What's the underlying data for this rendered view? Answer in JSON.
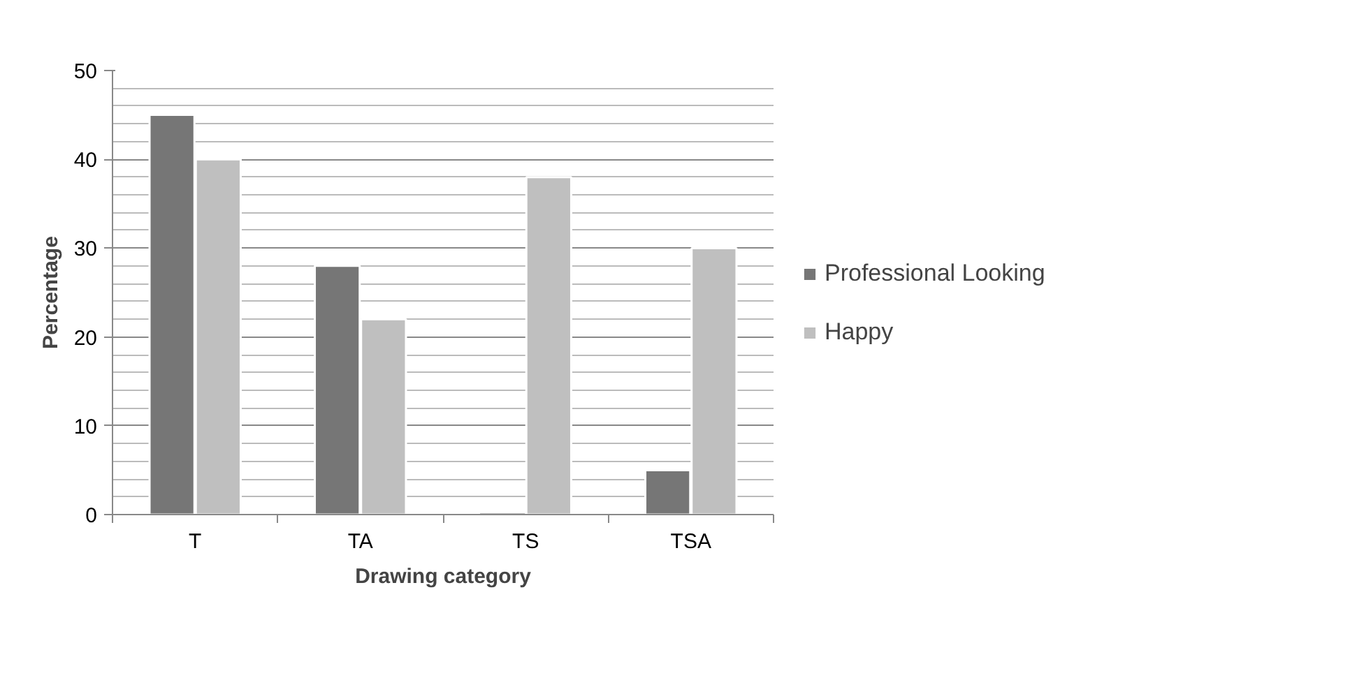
{
  "chart_data": {
    "type": "bar",
    "xlabel": "Drawing category",
    "ylabel": "Percentage",
    "categories": [
      "T",
      "TA",
      "TS",
      "TSA"
    ],
    "series": [
      {
        "name": "Professional Looking",
        "color": "#767676",
        "values": [
          45,
          28,
          0,
          5
        ]
      },
      {
        "name": "Happy",
        "color": "#bfbfbf",
        "values": [
          40,
          22,
          38,
          30
        ]
      }
    ],
    "ylim": [
      0,
      50
    ],
    "yticks": [
      0,
      10,
      20,
      30,
      40,
      50
    ],
    "grid": "y",
    "legend": "right"
  }
}
